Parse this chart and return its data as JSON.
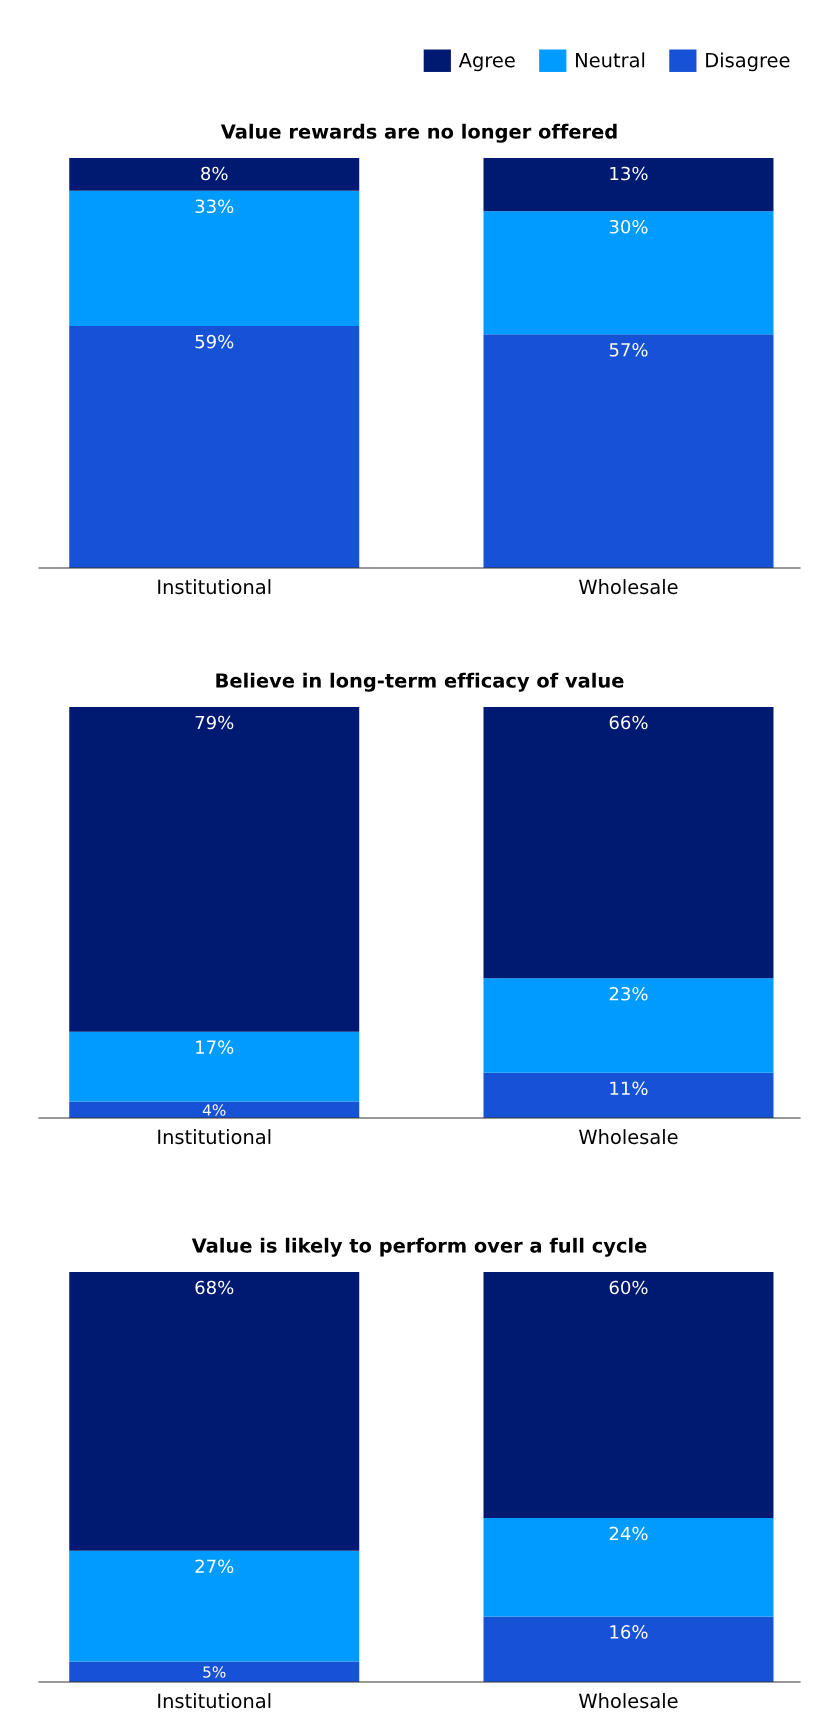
{
  "chart_data": [
    {
      "type": "bar",
      "title": "Value rewards are no longer offered",
      "categories": [
        "Institutional",
        "Wholesale"
      ],
      "stacked": true,
      "ylim": [
        0,
        100
      ],
      "tick_labels": "x",
      "grid": false,
      "legend": "top right",
      "series": [
        {
          "name": "Disagree",
          "color": "#1652d6",
          "values": [
            59,
            57
          ],
          "value_labels": [
            "59%",
            "57%"
          ]
        },
        {
          "name": "Neutral",
          "color": "#009bff",
          "values": [
            33,
            30
          ],
          "value_labels": [
            "33%",
            "30%"
          ]
        },
        {
          "name": "Agree",
          "color": "#001a72",
          "values": [
            8,
            13
          ],
          "value_labels": [
            "8%",
            "13%"
          ]
        }
      ]
    },
    {
      "type": "bar",
      "title": "Believe in long-term efficacy of value",
      "categories": [
        "Institutional",
        "Wholesale"
      ],
      "stacked": true,
      "ylim": [
        0,
        100
      ],
      "tick_labels": "x",
      "grid": false,
      "series": [
        {
          "color": "#1652d6",
          "values": [
            4,
            11
          ],
          "value_labels": [
            "4%",
            "11%"
          ]
        },
        {
          "color": "#009bff",
          "values": [
            17,
            23
          ],
          "value_labels": [
            "17%",
            "23%"
          ]
        },
        {
          "color": "#001a72",
          "values": [
            79,
            66
          ],
          "value_labels": [
            "79%",
            "66%"
          ]
        }
      ]
    },
    {
      "type": "bar",
      "title": "Value is likely to perform over a full cycle",
      "categories": [
        "Institutional",
        "Wholesale"
      ],
      "stacked": true,
      "ylim": [
        0,
        100
      ],
      "tick_labels": "x",
      "grid": false,
      "series": [
        {
          "color": "#1652d6",
          "values": [
            5,
            16
          ],
          "value_labels": [
            "5%",
            "16%"
          ]
        },
        {
          "color": "#009bff",
          "values": [
            27,
            24
          ],
          "value_labels": [
            "27%",
            "24%"
          ]
        },
        {
          "color": "#001a72",
          "values": [
            68,
            60
          ],
          "value_labels": [
            "68%",
            "60%"
          ]
        }
      ]
    }
  ]
}
